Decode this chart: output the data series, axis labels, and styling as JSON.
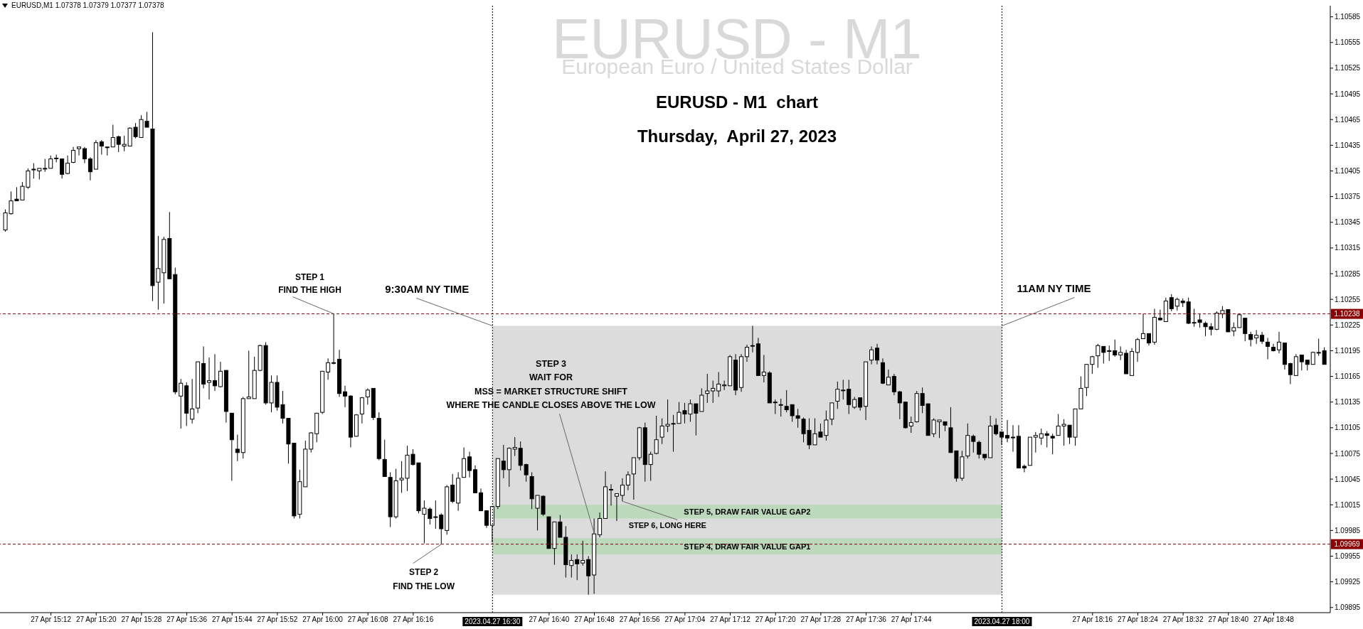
{
  "chart_data": {
    "type": "candlestick",
    "title": "EURUSD - M1  chart",
    "subtitle": "Thursday,  April 27, 2023",
    "annotations": [
      "EURUSD,M1 1.07378 1.07379 1.07377 1.07378",
      "EURUSD - M1",
      "European Euro / United States Dollar",
      {
        "text": "STEP 1\nFIND THE HIGH",
        "x": "2023-04-27T16:02",
        "y": 1.10238
      },
      {
        "text": "9:30AM NY TIME",
        "x": "2023-04-27T16:30",
        "y": 1.10224
      },
      {
        "text": "11AM NY TIME",
        "x": "2023-04-27T18:00",
        "y": 1.10224
      },
      {
        "text": "STEP 2\nFIND THE LOW",
        "x": "2023-04-27T16:21",
        "y": 1.09969
      },
      {
        "text": "STEP 3\nWAIT FOR\nMSS = MARKET STRUCTURE SHIFT\nWHERE THE CANDLE CLOSES ABOVE THE LOW",
        "x": "2023-04-27T16:48",
        "y": 1.09981
      },
      {
        "text": "STEP 6, LONG HERE",
        "x": "2023-04-27T16:53",
        "y": 1.10019
      }
    ],
    "x": [
      "2023-04-27T15:04",
      "2023-04-27T15:05",
      "2023-04-27T15:06",
      "2023-04-27T15:07",
      "2023-04-27T15:08",
      "2023-04-27T15:09",
      "2023-04-27T15:10",
      "2023-04-27T15:11",
      "2023-04-27T15:12",
      "2023-04-27T15:13",
      "2023-04-27T15:14",
      "2023-04-27T15:15",
      "2023-04-27T15:16",
      "2023-04-27T15:17",
      "2023-04-27T15:18",
      "2023-04-27T15:19",
      "2023-04-27T15:20",
      "2023-04-27T15:21",
      "2023-04-27T15:22",
      "2023-04-27T15:23",
      "2023-04-27T15:24",
      "2023-04-27T15:25",
      "2023-04-27T15:26",
      "2023-04-27T15:27",
      "2023-04-27T15:28",
      "2023-04-27T15:29",
      "2023-04-27T15:30",
      "2023-04-27T15:31",
      "2023-04-27T15:32",
      "2023-04-27T15:33",
      "2023-04-27T15:34",
      "2023-04-27T15:35",
      "2023-04-27T15:36",
      "2023-04-27T15:37",
      "2023-04-27T15:38",
      "2023-04-27T15:39",
      "2023-04-27T15:40",
      "2023-04-27T15:41",
      "2023-04-27T15:42",
      "2023-04-27T15:43",
      "2023-04-27T15:44",
      "2023-04-27T15:45",
      "2023-04-27T15:46",
      "2023-04-27T15:47",
      "2023-04-27T15:48",
      "2023-04-27T15:49",
      "2023-04-27T15:50",
      "2023-04-27T15:51",
      "2023-04-27T15:52",
      "2023-04-27T15:53",
      "2023-04-27T15:54",
      "2023-04-27T15:55",
      "2023-04-27T15:56",
      "2023-04-27T15:57",
      "2023-04-27T15:58",
      "2023-04-27T15:59",
      "2023-04-27T16:00",
      "2023-04-27T16:01",
      "2023-04-27T16:02",
      "2023-04-27T16:03",
      "2023-04-27T16:04",
      "2023-04-27T16:05",
      "2023-04-27T16:06",
      "2023-04-27T16:07",
      "2023-04-27T16:08",
      "2023-04-27T16:09",
      "2023-04-27T16:10",
      "2023-04-27T16:11",
      "2023-04-27T16:12",
      "2023-04-27T16:13",
      "2023-04-27T16:14",
      "2023-04-27T16:15",
      "2023-04-27T16:16",
      "2023-04-27T16:17",
      "2023-04-27T16:18",
      "2023-04-27T16:19",
      "2023-04-27T16:20",
      "2023-04-27T16:21",
      "2023-04-27T16:22",
      "2023-04-27T16:23",
      "2023-04-27T16:24",
      "2023-04-27T16:25",
      "2023-04-27T16:26",
      "2023-04-27T16:27",
      "2023-04-27T16:28",
      "2023-04-27T16:29",
      "2023-04-27T16:30",
      "2023-04-27T16:31",
      "2023-04-27T16:32",
      "2023-04-27T16:33",
      "2023-04-27T16:34",
      "2023-04-27T16:35",
      "2023-04-27T16:36",
      "2023-04-27T16:37",
      "2023-04-27T16:38",
      "2023-04-27T16:39",
      "2023-04-27T16:40",
      "2023-04-27T16:41",
      "2023-04-27T16:42",
      "2023-04-27T16:43",
      "2023-04-27T16:44",
      "2023-04-27T16:45",
      "2023-04-27T16:46",
      "2023-04-27T16:47",
      "2023-04-27T16:48",
      "2023-04-27T16:49",
      "2023-04-27T16:50",
      "2023-04-27T16:51",
      "2023-04-27T16:52",
      "2023-04-27T16:53",
      "2023-04-27T16:54",
      "2023-04-27T16:55",
      "2023-04-27T16:56",
      "2023-04-27T16:57",
      "2023-04-27T16:58",
      "2023-04-27T16:59",
      "2023-04-27T17:00",
      "2023-04-27T17:01",
      "2023-04-27T17:02",
      "2023-04-27T17:03",
      "2023-04-27T17:04",
      "2023-04-27T17:05",
      "2023-04-27T17:06",
      "2023-04-27T17:07",
      "2023-04-27T17:08",
      "2023-04-27T17:09",
      "2023-04-27T17:10",
      "2023-04-27T17:11",
      "2023-04-27T17:12",
      "2023-04-27T17:13",
      "2023-04-27T17:14",
      "2023-04-27T17:15",
      "2023-04-27T17:16",
      "2023-04-27T17:17",
      "2023-04-27T17:18",
      "2023-04-27T17:19",
      "2023-04-27T17:20",
      "2023-04-27T17:21",
      "2023-04-27T17:22",
      "2023-04-27T17:23",
      "2023-04-27T17:24",
      "2023-04-27T17:25",
      "2023-04-27T17:26",
      "2023-04-27T17:27",
      "2023-04-27T17:28",
      "2023-04-27T17:29",
      "2023-04-27T17:30",
      "2023-04-27T17:31",
      "2023-04-27T17:32",
      "2023-04-27T17:33",
      "2023-04-27T17:34",
      "2023-04-27T17:35",
      "2023-04-27T17:36",
      "2023-04-27T17:37",
      "2023-04-27T17:38",
      "2023-04-27T17:39",
      "2023-04-27T17:40",
      "2023-04-27T17:41",
      "2023-04-27T17:42",
      "2023-04-27T17:43",
      "2023-04-27T17:44",
      "2023-04-27T17:45",
      "2023-04-27T17:46",
      "2023-04-27T17:47",
      "2023-04-27T17:48",
      "2023-04-27T17:49",
      "2023-04-27T17:50",
      "2023-04-27T17:51",
      "2023-04-27T17:52",
      "2023-04-27T17:53",
      "2023-04-27T17:54",
      "2023-04-27T17:55",
      "2023-04-27T17:56",
      "2023-04-27T17:57",
      "2023-04-27T17:58",
      "2023-04-27T17:59",
      "2023-04-27T18:00",
      "2023-04-27T18:01",
      "2023-04-27T18:02",
      "2023-04-27T18:03",
      "2023-04-27T18:04",
      "2023-04-27T18:05",
      "2023-04-27T18:06",
      "2023-04-27T18:07",
      "2023-04-27T18:08",
      "2023-04-27T18:09",
      "2023-04-27T18:10",
      "2023-04-27T18:11",
      "2023-04-27T18:12",
      "2023-04-27T18:13",
      "2023-04-27T18:14",
      "2023-04-27T18:15",
      "2023-04-27T18:16",
      "2023-04-27T18:17",
      "2023-04-27T18:18",
      "2023-04-27T18:19",
      "2023-04-27T18:20",
      "2023-04-27T18:21",
      "2023-04-27T18:22",
      "2023-04-27T18:23",
      "2023-04-27T18:24",
      "2023-04-27T18:25",
      "2023-04-27T18:26",
      "2023-04-27T18:27",
      "2023-04-27T18:28",
      "2023-04-27T18:29",
      "2023-04-27T18:30",
      "2023-04-27T18:31",
      "2023-04-27T18:32",
      "2023-04-27T18:33",
      "2023-04-27T18:34",
      "2023-04-27T18:35",
      "2023-04-27T18:36",
      "2023-04-27T18:37",
      "2023-04-27T18:38",
      "2023-04-27T18:39",
      "2023-04-27T18:40",
      "2023-04-27T18:41",
      "2023-04-27T18:42",
      "2023-04-27T18:43",
      "2023-04-27T18:44",
      "2023-04-27T18:45",
      "2023-04-27T18:46",
      "2023-04-27T18:47",
      "2023-04-27T18:48",
      "2023-04-27T18:49",
      "2023-04-27T18:50",
      "2023-04-27T18:51",
      "2023-04-27T18:52",
      "2023-04-27T18:53",
      "2023-04-27T18:54",
      "2023-04-27T18:55",
      "2023-04-27T18:56",
      "2023-04-27T18:57"
    ],
    "ohlc": [
      [
        1.10336,
        1.1036,
        1.10334,
        1.10356
      ],
      [
        1.10355,
        1.10381,
        1.10354,
        1.1037
      ],
      [
        1.10372,
        1.10386,
        1.1037,
        1.1037
      ],
      [
        1.10371,
        1.10392,
        1.10371,
        1.10387
      ],
      [
        1.10386,
        1.10408,
        1.10384,
        1.10405
      ],
      [
        1.10407,
        1.10414,
        1.10396,
        1.10407
      ],
      [
        1.10405,
        1.10408,
        1.10395,
        1.10408
      ],
      [
        1.10408,
        1.10419,
        1.10404,
        1.10408
      ],
      [
        1.10408,
        1.10423,
        1.10408,
        1.10419
      ],
      [
        1.1042,
        1.10424,
        1.10415,
        1.1042
      ],
      [
        1.10419,
        1.10419,
        1.10396,
        1.10401
      ],
      [
        1.10402,
        1.10423,
        1.10401,
        1.10414
      ],
      [
        1.10415,
        1.10433,
        1.10414,
        1.10429
      ],
      [
        1.10431,
        1.10433,
        1.10423,
        1.10433
      ],
      [
        1.10431,
        1.10433,
        1.10414,
        1.10419
      ],
      [
        1.10419,
        1.10421,
        1.10394,
        1.10404
      ],
      [
        1.10407,
        1.10441,
        1.10407,
        1.10438
      ],
      [
        1.10439,
        1.10441,
        1.10424,
        1.10434
      ],
      [
        1.10433,
        1.10433,
        1.10423,
        1.10433
      ],
      [
        1.10433,
        1.10459,
        1.10433,
        1.10444
      ],
      [
        1.10445,
        1.10446,
        1.10427,
        1.10436
      ],
      [
        1.10434,
        1.10446,
        1.10428,
        1.10436
      ],
      [
        1.10434,
        1.10456,
        1.10434,
        1.10455
      ],
      [
        1.10456,
        1.10461,
        1.10443,
        1.10445
      ],
      [
        1.10444,
        1.1047,
        1.10444,
        1.10465
      ],
      [
        1.10463,
        1.10474,
        1.10456,
        1.10456
      ],
      [
        1.10454,
        1.10567,
        1.10253,
        1.10271
      ],
      [
        1.10275,
        1.10329,
        1.10243,
        1.10291
      ],
      [
        1.10286,
        1.10328,
        1.1025,
        1.10325
      ],
      [
        1.10326,
        1.10357,
        1.10279,
        1.10279
      ],
      [
        1.10284,
        1.10292,
        1.10144,
        1.10147
      ],
      [
        1.10142,
        1.10162,
        1.10104,
        1.10157
      ],
      [
        1.10154,
        1.10158,
        1.10107,
        1.10122
      ],
      [
        1.10115,
        1.10162,
        1.1011,
        1.10127
      ],
      [
        1.10128,
        1.10182,
        1.10122,
        1.10182
      ],
      [
        1.1018,
        1.102,
        1.10151,
        1.10156
      ],
      [
        1.10158,
        1.10187,
        1.10138,
        1.1016
      ],
      [
        1.1016,
        1.10191,
        1.10148,
        1.10154
      ],
      [
        1.10153,
        1.10182,
        1.10152,
        1.10171
      ],
      [
        1.10172,
        1.10172,
        1.10111,
        1.10124
      ],
      [
        1.10122,
        1.10122,
        1.10043,
        1.10091
      ],
      [
        1.1008,
        1.10097,
        1.10066,
        1.10076
      ],
      [
        1.10076,
        1.10141,
        1.10069,
        1.10139
      ],
      [
        1.10139,
        1.10195,
        1.10139,
        1.10141
      ],
      [
        1.10139,
        1.10188,
        1.10139,
        1.10172
      ],
      [
        1.10172,
        1.10202,
        1.10171,
        1.10201
      ],
      [
        1.10201,
        1.10205,
        1.10132,
        1.10134
      ],
      [
        1.10134,
        1.10166,
        1.10123,
        1.10158
      ],
      [
        1.10158,
        1.10166,
        1.10125,
        1.10129
      ],
      [
        1.10132,
        1.10148,
        1.1011,
        1.10116
      ],
      [
        1.10116,
        1.10116,
        1.10063,
        1.10086
      ],
      [
        1.10087,
        1.10087,
        1.09999,
        1.10002
      ],
      [
        1.10004,
        1.10056,
        1.09999,
        1.10042
      ],
      [
        1.10036,
        1.1009,
        1.10036,
        1.1008
      ],
      [
        1.1008,
        1.101,
        1.10076,
        1.10099
      ],
      [
        1.10098,
        1.10122,
        1.10088,
        1.10122
      ],
      [
        1.10123,
        1.10171,
        1.10121,
        1.10171
      ],
      [
        1.1017,
        1.10186,
        1.10161,
        1.10181
      ],
      [
        1.10181,
        1.10238,
        1.10179,
        1.10181
      ],
      [
        1.10185,
        1.10196,
        1.10141,
        1.10145
      ],
      [
        1.10147,
        1.10154,
        1.10129,
        1.10142
      ],
      [
        1.10142,
        1.10143,
        1.10082,
        1.10094
      ],
      [
        1.10095,
        1.10121,
        1.10095,
        1.1012
      ],
      [
        1.10121,
        1.10141,
        1.1011,
        1.1014
      ],
      [
        1.10141,
        1.10151,
        1.10132,
        1.10149
      ],
      [
        1.10151,
        1.10151,
        1.10114,
        1.10117
      ],
      [
        1.10116,
        1.10123,
        1.10067,
        1.10069
      ],
      [
        1.10068,
        1.10091,
        1.10048,
        1.10048
      ],
      [
        1.10047,
        1.10053,
        1.09989,
        1.10001
      ],
      [
        1.10001,
        1.10057,
        1.09999,
        1.10043
      ],
      [
        1.10044,
        1.10066,
        1.10029,
        1.10046
      ],
      [
        1.10046,
        1.10084,
        1.10031,
        1.10073
      ],
      [
        1.10074,
        1.1008,
        1.10061,
        1.10062
      ],
      [
        1.10064,
        1.10064,
        1.10005,
        1.10008
      ],
      [
        1.10004,
        1.1002,
        1.0997,
        1.10011
      ],
      [
        1.1001,
        1.10012,
        1.09992,
        1.09999
      ],
      [
        1.10001,
        1.1002,
        1.09987,
        1.10001
      ],
      [
        1.10003,
        1.10005,
        1.09969,
        1.09987
      ],
      [
        1.09985,
        1.10038,
        1.0998,
        1.10036
      ],
      [
        1.10038,
        1.10051,
        1.10017,
        1.10019
      ],
      [
        1.10017,
        1.10053,
        1.10008,
        1.10046
      ],
      [
        1.10047,
        1.10082,
        1.10047,
        1.10069
      ],
      [
        1.10071,
        1.10077,
        1.10047,
        1.10055
      ],
      [
        1.10056,
        1.10061,
        1.10029,
        1.10029
      ],
      [
        1.10029,
        1.10034,
        1.10008,
        1.10008
      ],
      [
        1.10008,
        1.10008,
        1.09988,
        1.09991
      ],
      [
        1.09991,
        1.10013,
        1.09971,
        1.10013
      ],
      [
        1.10013,
        1.10069,
        1.1001,
        1.10069
      ],
      [
        1.10066,
        1.10085,
        1.10046,
        1.10056
      ],
      [
        1.10056,
        1.10082,
        1.10036,
        1.10081
      ],
      [
        1.1008,
        1.10094,
        1.10072,
        1.10082
      ],
      [
        1.10081,
        1.10089,
        1.10055,
        1.10061
      ],
      [
        1.10062,
        1.10063,
        1.10042,
        1.1005
      ],
      [
        1.10048,
        1.10053,
        1.1001,
        1.10022
      ],
      [
        1.10011,
        1.10026,
        1.09985,
        1.10026
      ],
      [
        1.10025,
        1.10026,
        1.10002,
        1.10004
      ],
      [
        1.10001,
        1.10001,
        1.09964,
        1.09964
      ],
      [
        1.09964,
        1.09995,
        1.09945,
        1.09995
      ],
      [
        1.09995,
        1.10003,
        1.09977,
        1.09977
      ],
      [
        1.09977,
        1.0999,
        1.0993,
        1.09945
      ],
      [
        1.09944,
        1.09957,
        1.0993,
        1.0995
      ],
      [
        1.09951,
        1.09957,
        1.09927,
        1.09946
      ],
      [
        1.09947,
        1.09973,
        1.09944,
        1.0995
      ],
      [
        1.09951,
        1.09955,
        1.0991,
        1.09932
      ],
      [
        1.09933,
        1.09999,
        1.09911,
        1.09981
      ],
      [
        1.0998,
        1.10006,
        1.09977,
        1.09999
      ],
      [
        1.09999,
        1.10054,
        1.09999,
        1.10036
      ],
      [
        1.10033,
        1.10039,
        1.10014,
        1.10033
      ],
      [
        1.10025,
        1.10028,
        1.09996,
        1.10028
      ],
      [
        1.10026,
        1.10046,
        1.10019,
        1.10038
      ],
      [
        1.10038,
        1.10054,
        1.10032,
        1.1005
      ],
      [
        1.10051,
        1.1007,
        1.10021,
        1.1007
      ],
      [
        1.1007,
        1.10106,
        1.10067,
        1.10105
      ],
      [
        1.10105,
        1.10111,
        1.10042,
        1.10062
      ],
      [
        1.10062,
        1.10077,
        1.10043,
        1.10074
      ],
      [
        1.10075,
        1.10119,
        1.10074,
        1.10091
      ],
      [
        1.10094,
        1.10116,
        1.10086,
        1.10107
      ],
      [
        1.10107,
        1.10138,
        1.101,
        1.10109
      ],
      [
        1.1011,
        1.1012,
        1.10077,
        1.1011
      ],
      [
        1.1011,
        1.10135,
        1.1011,
        1.10123
      ],
      [
        1.10125,
        1.10134,
        1.1011,
        1.10121
      ],
      [
        1.10121,
        1.10138,
        1.10112,
        1.10133
      ],
      [
        1.10133,
        1.10133,
        1.10096,
        1.10122
      ],
      [
        1.10124,
        1.10151,
        1.10124,
        1.10143
      ],
      [
        1.10145,
        1.10168,
        1.10134,
        1.10148
      ],
      [
        1.10148,
        1.1016,
        1.10134,
        1.10151
      ],
      [
        1.10148,
        1.1017,
        1.10141,
        1.10156
      ],
      [
        1.10154,
        1.1016,
        1.10149,
        1.10155
      ],
      [
        1.10154,
        1.1019,
        1.10154,
        1.10188
      ],
      [
        1.10184,
        1.10191,
        1.10143,
        1.10149
      ],
      [
        1.10152,
        1.10191,
        1.10147,
        1.10188
      ],
      [
        1.10188,
        1.10202,
        1.10182,
        1.10199
      ],
      [
        1.10201,
        1.10224,
        1.10193,
        1.10201
      ],
      [
        1.10203,
        1.1021,
        1.10166,
        1.10166
      ],
      [
        1.10166,
        1.1019,
        1.10158,
        1.1017
      ],
      [
        1.10169,
        1.10171,
        1.10134,
        1.10134
      ],
      [
        1.10135,
        1.10138,
        1.10121,
        1.10135
      ],
      [
        1.10132,
        1.10139,
        1.10118,
        1.10132
      ],
      [
        1.1013,
        1.10149,
        1.10123,
        1.10126
      ],
      [
        1.10132,
        1.10132,
        1.10112,
        1.10119
      ],
      [
        1.10119,
        1.10127,
        1.10105,
        1.10116
      ],
      [
        1.10115,
        1.10117,
        1.10088,
        1.10098
      ],
      [
        1.10102,
        1.10116,
        1.1008,
        1.10085
      ],
      [
        1.10085,
        1.10116,
        1.10085,
        1.10098
      ],
      [
        1.101,
        1.1011,
        1.10094,
        1.10094
      ],
      [
        1.10096,
        1.10125,
        1.1009,
        1.10114
      ],
      [
        1.10115,
        1.10134,
        1.10108,
        1.10134
      ],
      [
        1.10136,
        1.10159,
        1.10127,
        1.1015
      ],
      [
        1.10149,
        1.10161,
        1.10138,
        1.10149
      ],
      [
        1.1015,
        1.10161,
        1.10121,
        1.10132
      ],
      [
        1.10129,
        1.10141,
        1.10127,
        1.10138
      ],
      [
        1.1014,
        1.1014,
        1.10125,
        1.10129
      ],
      [
        1.1013,
        1.10182,
        1.10114,
        1.10182
      ],
      [
        1.10184,
        1.102,
        1.10179,
        1.10196
      ],
      [
        1.10198,
        1.10203,
        1.10179,
        1.10184
      ],
      [
        1.10181,
        1.10186,
        1.10156,
        1.10157
      ],
      [
        1.10155,
        1.10173,
        1.10155,
        1.10164
      ],
      [
        1.10165,
        1.10168,
        1.10143,
        1.10147
      ],
      [
        1.10147,
        1.10148,
        1.10115,
        1.10134
      ],
      [
        1.10135,
        1.10135,
        1.10104,
        1.10105
      ],
      [
        1.10107,
        1.10118,
        1.10099,
        1.10111
      ],
      [
        1.10112,
        1.10148,
        1.10111,
        1.10145
      ],
      [
        1.10145,
        1.10152,
        1.10122,
        1.10131
      ],
      [
        1.10133,
        1.10133,
        1.10096,
        1.10096
      ],
      [
        1.10098,
        1.10116,
        1.10094,
        1.10114
      ],
      [
        1.10112,
        1.10114,
        1.10093,
        1.10114
      ],
      [
        1.10112,
        1.10112,
        1.10101,
        1.10108
      ],
      [
        1.10105,
        1.10129,
        1.10076,
        1.10076
      ],
      [
        1.10078,
        1.10078,
        1.10042,
        1.10046
      ],
      [
        1.10046,
        1.10078,
        1.10043,
        1.10071
      ],
      [
        1.10072,
        1.1011,
        1.10069,
        1.10096
      ],
      [
        1.10095,
        1.10097,
        1.10076,
        1.10089
      ],
      [
        1.10088,
        1.1009,
        1.10069,
        1.10074
      ],
      [
        1.10074,
        1.10074,
        1.10067,
        1.1007
      ],
      [
        1.1007,
        1.10119,
        1.1007,
        1.10107
      ],
      [
        1.10108,
        1.10116,
        1.10096,
        1.10098
      ],
      [
        1.101,
        1.101,
        1.10085,
        1.10094
      ],
      [
        1.10096,
        1.10114,
        1.10088,
        1.10093
      ],
      [
        1.10094,
        1.10108,
        1.10077,
        1.10094
      ],
      [
        1.10095,
        1.10108,
        1.10058,
        1.10058
      ],
      [
        1.1006,
        1.10062,
        1.10053,
        1.10058
      ],
      [
        1.10061,
        1.10094,
        1.10061,
        1.10094
      ],
      [
        1.10094,
        1.101,
        1.10076,
        1.10096
      ],
      [
        1.10093,
        1.10104,
        1.10085,
        1.10098
      ],
      [
        1.10098,
        1.10101,
        1.10082,
        1.10096
      ],
      [
        1.10095,
        1.10098,
        1.10074,
        1.10093
      ],
      [
        1.10096,
        1.10121,
        1.10096,
        1.10107
      ],
      [
        1.10107,
        1.10115,
        1.10084,
        1.10109
      ],
      [
        1.10108,
        1.10108,
        1.10086,
        1.10094
      ],
      [
        1.10094,
        1.10127,
        1.10084,
        1.10127
      ],
      [
        1.10127,
        1.10165,
        1.10127,
        1.10151
      ],
      [
        1.10152,
        1.10179,
        1.10142,
        1.10179
      ],
      [
        1.10179,
        1.10189,
        1.10168,
        1.10188
      ],
      [
        1.10189,
        1.10203,
        1.10175,
        1.10201
      ],
      [
        1.102,
        1.102,
        1.1018,
        1.10193
      ],
      [
        1.10195,
        1.10201,
        1.10183,
        1.10195
      ],
      [
        1.10195,
        1.10208,
        1.10188,
        1.1019
      ],
      [
        1.1019,
        1.102,
        1.10184,
        1.10193
      ],
      [
        1.10192,
        1.10196,
        1.10168,
        1.10168
      ],
      [
        1.10166,
        1.10198,
        1.10166,
        1.10194
      ],
      [
        1.10193,
        1.1021,
        1.10182,
        1.10208
      ],
      [
        1.10209,
        1.10238,
        1.10209,
        1.10215
      ],
      [
        1.10215,
        1.10215,
        1.10201,
        1.10204
      ],
      [
        1.10205,
        1.10244,
        1.10202,
        1.10234
      ],
      [
        1.10233,
        1.10243,
        1.1023,
        1.10231
      ],
      [
        1.10229,
        1.10257,
        1.10229,
        1.10253
      ],
      [
        1.10257,
        1.10261,
        1.10241,
        1.10244
      ],
      [
        1.10247,
        1.10257,
        1.10242,
        1.10255
      ],
      [
        1.10253,
        1.10256,
        1.10246,
        1.10251
      ],
      [
        1.10252,
        1.10257,
        1.10226,
        1.10227
      ],
      [
        1.10228,
        1.10244,
        1.10223,
        1.10228
      ],
      [
        1.10231,
        1.10238,
        1.10222,
        1.10228
      ],
      [
        1.10227,
        1.10229,
        1.10212,
        1.10223
      ],
      [
        1.10223,
        1.10227,
        1.10213,
        1.1022
      ],
      [
        1.1022,
        1.10241,
        1.10219,
        1.10239
      ],
      [
        1.10238,
        1.10247,
        1.10233,
        1.10242
      ],
      [
        1.10243,
        1.10243,
        1.10217,
        1.10217
      ],
      [
        1.10218,
        1.10228,
        1.10212,
        1.10222
      ],
      [
        1.10222,
        1.10238,
        1.10222,
        1.10237
      ],
      [
        1.10233,
        1.10233,
        1.10206,
        1.10215
      ],
      [
        1.10214,
        1.10217,
        1.102,
        1.10208
      ],
      [
        1.1021,
        1.10219,
        1.10203,
        1.10213
      ],
      [
        1.10213,
        1.10217,
        1.10203,
        1.10206
      ],
      [
        1.10205,
        1.1021,
        1.10185,
        1.102
      ],
      [
        1.10199,
        1.10203,
        1.10194,
        1.10195
      ],
      [
        1.10196,
        1.10217,
        1.10192,
        1.10205
      ],
      [
        1.10204,
        1.10204,
        1.10173,
        1.10179
      ],
      [
        1.1018,
        1.10181,
        1.10156,
        1.10167
      ],
      [
        1.10166,
        1.10191,
        1.10166,
        1.10188
      ],
      [
        1.1019,
        1.1019,
        1.10172,
        1.10182
      ],
      [
        1.10184,
        1.10184,
        1.10172,
        1.10179
      ],
      [
        1.10179,
        1.10194,
        1.10179,
        1.10193
      ],
      [
        1.10193,
        1.10209,
        1.10189,
        1.10193
      ],
      [
        1.10195,
        1.10199,
        1.10179,
        1.10179
      ]
    ],
    "xlim": [
      "2023-04-27T15:03",
      "2023-04-27T18:58"
    ],
    "ylim": [
      1.09889,
      1.10598
    ],
    "xticks": [
      {
        "value": "2023-04-27T15:12",
        "label": "27 Apr 15:12"
      },
      {
        "value": "2023-04-27T15:20",
        "label": "27 Apr 15:20"
      },
      {
        "value": "2023-04-27T15:28",
        "label": "27 Apr 15:28"
      },
      {
        "value": "2023-04-27T15:36",
        "label": "27 Apr 15:36"
      },
      {
        "value": "2023-04-27T15:44",
        "label": "27 Apr 15:44"
      },
      {
        "value": "2023-04-27T15:52",
        "label": "27 Apr 15:52"
      },
      {
        "value": "2023-04-27T16:00",
        "label": "27 Apr 16:00"
      },
      {
        "value": "2023-04-27T16:08",
        "label": "27 Apr 16:08"
      },
      {
        "value": "2023-04-27T16:16",
        "label": "27 Apr 16:16"
      },
      {
        "value": "2023-04-27T16:40",
        "label": "27 Apr 16:40"
      },
      {
        "value": "2023-04-27T16:48",
        "label": "27 Apr 16:48"
      },
      {
        "value": "2023-04-27T16:56",
        "label": "27 Apr 16:56"
      },
      {
        "value": "2023-04-27T17:04",
        "label": "27 Apr 17:04"
      },
      {
        "value": "2023-04-27T17:12",
        "label": "27 Apr 17:12"
      },
      {
        "value": "2023-04-27T17:20",
        "label": "27 Apr 17:20"
      },
      {
        "value": "2023-04-27T17:28",
        "label": "27 Apr 17:28"
      },
      {
        "value": "2023-04-27T17:36",
        "label": "27 Apr 17:36"
      },
      {
        "value": "2023-04-27T17:44",
        "label": "27 Apr 17:44"
      },
      {
        "value": "2023-04-27T18:16",
        "label": "27 Apr 18:16"
      },
      {
        "value": "2023-04-27T18:24",
        "label": "27 Apr 18:24"
      },
      {
        "value": "2023-04-27T18:32",
        "label": "27 Apr 18:32"
      },
      {
        "value": "2023-04-27T18:40",
        "label": "27 Apr 18:40"
      },
      {
        "value": "2023-04-27T18:48",
        "label": "27 Apr 18:48"
      }
    ],
    "yticks": [
      1.09895,
      1.09925,
      1.09955,
      1.09985,
      1.10015,
      1.10045,
      1.10075,
      1.10105,
      1.10135,
      1.10165,
      1.10195,
      1.10225,
      1.10255,
      1.10285,
      1.10315,
      1.10345,
      1.10375,
      1.10405,
      1.10435,
      1.10465,
      1.10495,
      1.10525,
      1.10555,
      1.10585
    ],
    "ref_lines": [
      {
        "axis": "y",
        "value": 1.10238,
        "label": "1.10238",
        "color": "#8b0000",
        "line_style": "dashed"
      },
      {
        "axis": "y",
        "value": 1.09969,
        "label": "1.09969",
        "color": "#8b0000",
        "line_style": "dashed"
      },
      {
        "axis": "x",
        "value": "2023-04-27T16:30",
        "label": "2023.04.27 16:30",
        "color": "#000000",
        "line_style": "dotted"
      },
      {
        "axis": "x",
        "value": "2023-04-27T18:00",
        "label": "2023.04.27 18:00",
        "color": "#000000",
        "line_style": "dotted"
      }
    ],
    "bands": [
      {
        "axis": "x",
        "from": "2023-04-27T16:30",
        "to": "2023-04-27T18:00",
        "color": "#dcdcdc"
      },
      {
        "axis": "y",
        "from": 1.09999,
        "to": 1.10015,
        "label": "STEP 5, DRAW FAIR VALUE GAP2",
        "color": "#bcd9bc"
      },
      {
        "axis": "y",
        "from": 1.09957,
        "to": 1.09976,
        "label": "STEP 4, DRAW FAIR VALUE GAP1",
        "color": "#bcd9bc"
      }
    ]
  }
}
